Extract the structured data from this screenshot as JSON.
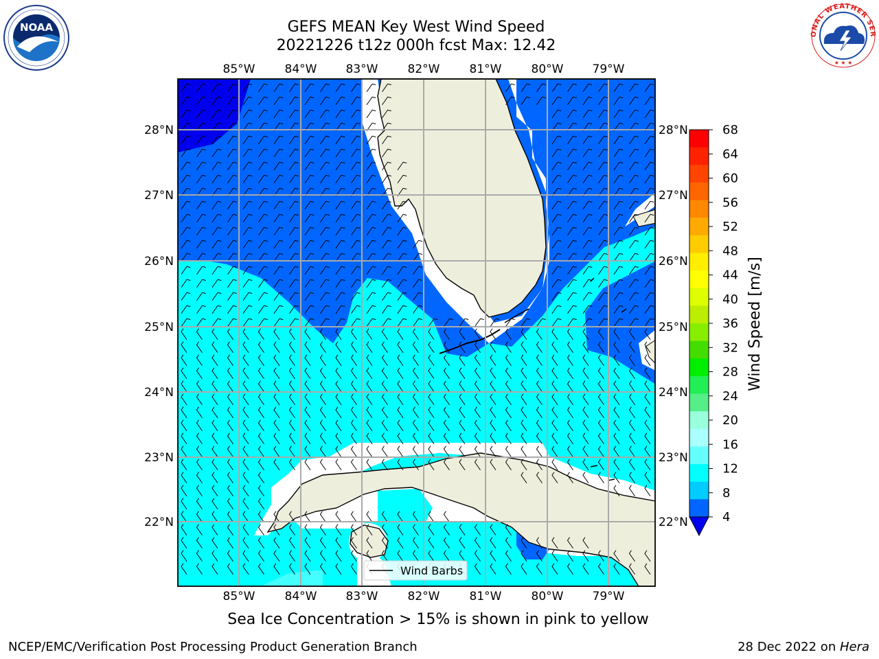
{
  "header": {
    "title_line1": "GEFS MEAN Key West Wind Speed",
    "title_line2": "20221226 t12z 000h fcst   Max: 12.42"
  },
  "logos": {
    "left_text": "NOAA",
    "left_ring": "NATIONAL OCEANIC AND ATMOSPHERIC ADMINISTRATION · U.S. DEPARTMENT OF COMMERCE",
    "right_ring": "NATIONAL WEATHER SERVICE"
  },
  "map": {
    "lon_labels": [
      "85°W",
      "84°W",
      "83°W",
      "82°W",
      "81°W",
      "80°W",
      "79°W"
    ],
    "lat_labels": [
      "28°N",
      "27°N",
      "26°N",
      "25°N",
      "24°N",
      "23°N",
      "22°N"
    ],
    "legend_label": "Wind Barbs",
    "region": "Key West / Florida Straits",
    "colors": {
      "land": "#eeeedd",
      "gridline": "#aaaaaa",
      "speed_4_8": "#0066ff",
      "speed_8_12": "#00ffff",
      "speed_below_4": "#0000ee",
      "speed_12_16": "#44ffff"
    }
  },
  "colorbar": {
    "title": "Wind Speed [m/s]",
    "ticks": [
      "68",
      "64",
      "60",
      "56",
      "52",
      "48",
      "44",
      "40",
      "36",
      "32",
      "28",
      "24",
      "20",
      "16",
      "12",
      "8",
      "4"
    ],
    "colors_top_to_bottom": [
      "#ff0000",
      "#ff2200",
      "#ff4400",
      "#ff6600",
      "#ff8800",
      "#ffaa00",
      "#ffcc00",
      "#ffee00",
      "#ffff00",
      "#ddff00",
      "#bbee00",
      "#88ee00",
      "#44dd00",
      "#00ee00",
      "#22ee55",
      "#55ee88",
      "#99ffdd",
      "#aaffff",
      "#66ffff",
      "#00ffff",
      "#00ccff",
      "#0066ff"
    ],
    "under_color": "#0000ee"
  },
  "caption": "Sea Ice Concentration > 15% is shown in pink to yellow",
  "footer": {
    "left": "NCEP/EMC/Verification Post Processing Product Generation Branch",
    "right_date": "28 Dec 2022 on ",
    "right_machine": "Hera"
  }
}
